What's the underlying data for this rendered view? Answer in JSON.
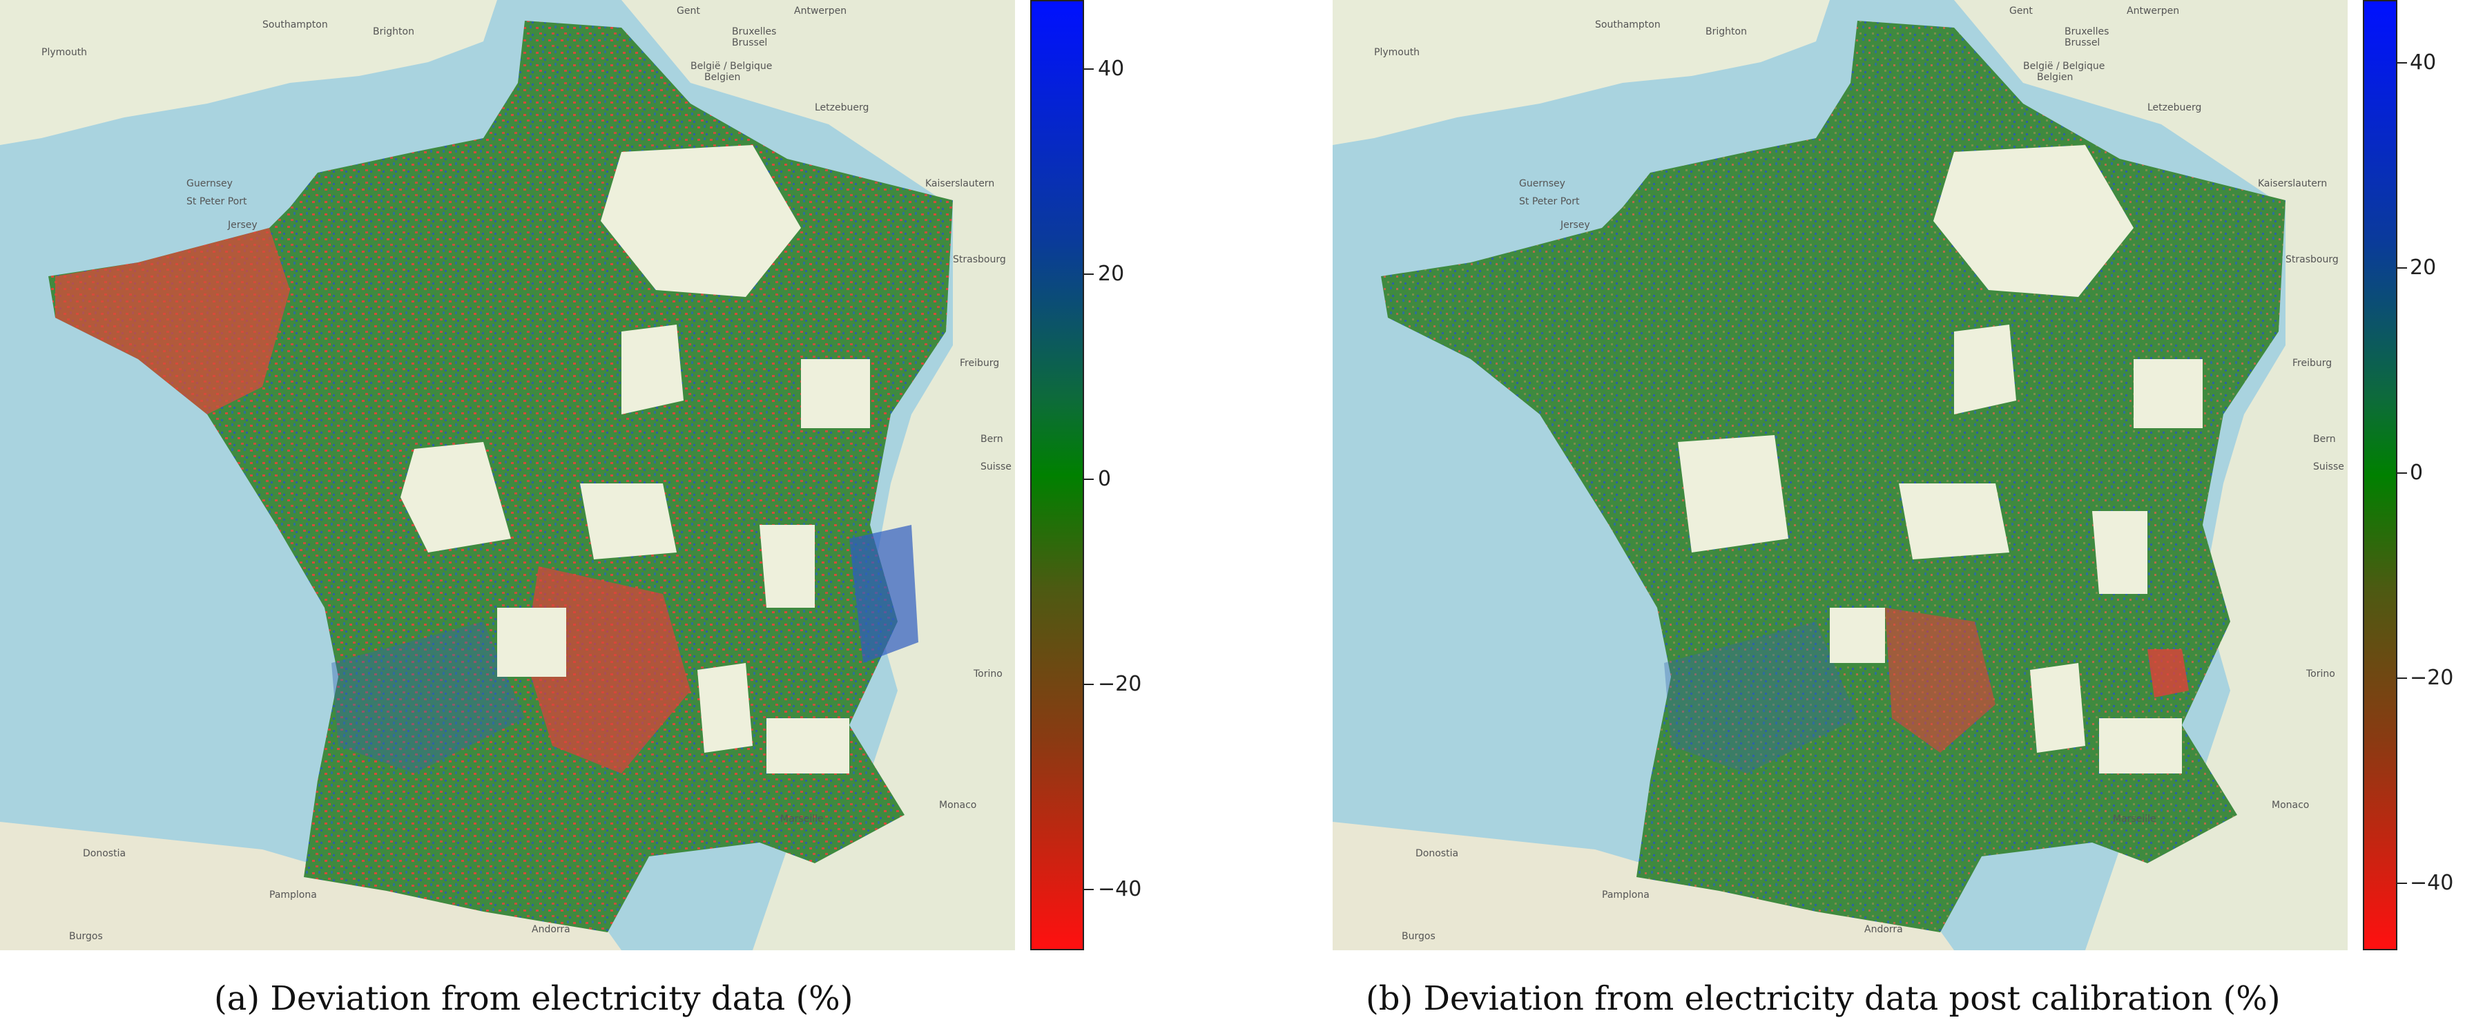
{
  "panels": [
    {
      "caption": "(a) Deviation from electricity data (%)",
      "colorbar": {
        "ticks": [
          "40",
          "20",
          "0",
          "−20",
          "−40"
        ],
        "values": [
          40,
          20,
          0,
          -20,
          -40
        ],
        "range": [
          -46,
          46
        ]
      },
      "map_labels": [
        "Plymouth",
        "Southampton",
        "Brighton",
        "Gent",
        "Bruxelles",
        "Brussel",
        "Antwerpen",
        "België / Belgique",
        "Belgien",
        "Guernsey",
        "St Peter Port",
        "Jersey",
        "Letzebuerg",
        "Kaiserslautern",
        "Strasbourg",
        "Freiburg",
        "Bern",
        "Suisse",
        "Torino",
        "Monaco",
        "Marseille",
        "Andorra",
        "Pamplona",
        "Burgos",
        "Donostia"
      ],
      "legend_colors": {
        "high": "#0010ff",
        "mid": "#008000",
        "low": "#ff1010"
      }
    },
    {
      "caption": "(b) Deviation from electricity data post calibration (%)",
      "colorbar": {
        "ticks": [
          "40",
          "20",
          "0",
          "−20",
          "−40"
        ],
        "values": [
          40,
          20,
          0,
          -20,
          -40
        ],
        "range": [
          -46,
          46
        ]
      },
      "map_labels": [
        "Plymouth",
        "Southampton",
        "Brighton",
        "Gent",
        "Bruxelles",
        "Brussel",
        "Antwerpen",
        "België / Belgique",
        "Belgien",
        "Guernsey",
        "St Peter Port",
        "Jersey",
        "Letzebuerg",
        "Kaiserslautern",
        "Strasbourg",
        "Freiburg",
        "Bern",
        "Suisse",
        "Torino",
        "Monaco",
        "Marseille",
        "Andorra",
        "Pamplona",
        "Burgos",
        "Donostia"
      ],
      "legend_colors": {
        "high": "#0010ff",
        "mid": "#008000",
        "low": "#ff1010"
      }
    }
  ]
}
